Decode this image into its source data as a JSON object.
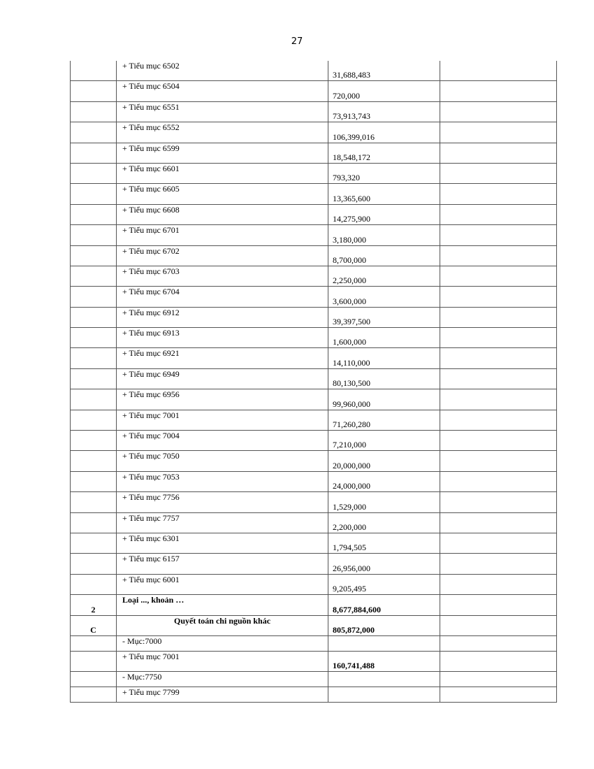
{
  "page_number": "27",
  "rows": [
    {
      "stt": "",
      "label": "+ Tiểu mục 6502",
      "value": "31,688,483"
    },
    {
      "stt": "",
      "label": "+ Tiểu mục 6504",
      "value": "720,000"
    },
    {
      "stt": "",
      "label": "+ Tiểu mục 6551",
      "value": "73,913,743"
    },
    {
      "stt": "",
      "label": "+ Tiểu mục 6552",
      "value": "106,399,016"
    },
    {
      "stt": "",
      "label": "+ Tiểu mục 6599",
      "value": "18,548,172"
    },
    {
      "stt": "",
      "label": "+ Tiểu mục 6601",
      "value": "793,320"
    },
    {
      "stt": "",
      "label": "+ Tiểu mục 6605",
      "value": "13,365,600"
    },
    {
      "stt": "",
      "label": "+ Tiểu mục 6608",
      "value": "14,275,900"
    },
    {
      "stt": "",
      "label": "+ Tiểu mục 6701",
      "value": "3,180,000"
    },
    {
      "stt": "",
      "label": "+ Tiểu mục 6702",
      "value": "8,700,000"
    },
    {
      "stt": "",
      "label": "+ Tiểu mục 6703",
      "value": "2,250,000"
    },
    {
      "stt": "",
      "label": "+ Tiểu mục 6704",
      "value": "3,600,000"
    },
    {
      "stt": "",
      "label": "+ Tiểu mục 6912",
      "value": "39,397,500"
    },
    {
      "stt": "",
      "label": "+ Tiểu mục 6913",
      "value": "1,600,000"
    },
    {
      "stt": "",
      "label": "+ Tiểu mục 6921",
      "value": "14,110,000"
    },
    {
      "stt": "",
      "label": "+ Tiểu mục 6949",
      "value": "80,130,500"
    },
    {
      "stt": "",
      "label": "+ Tiểu mục 6956",
      "value": "99,960,000"
    },
    {
      "stt": "",
      "label": "+ Tiểu mục 7001",
      "value": "71,260,280"
    },
    {
      "stt": "",
      "label": "+ Tiểu mục 7004",
      "value": "7,210,000"
    },
    {
      "stt": "",
      "label": "+ Tiểu mục 7050",
      "value": "20,000,000"
    },
    {
      "stt": "",
      "label": "+ Tiểu mục 7053",
      "value": "24,000,000"
    },
    {
      "stt": "",
      "label": "+ Tiểu mục 7756",
      "value": "1,529,000"
    },
    {
      "stt": "",
      "label": "+ Tiểu mục 7757",
      "value": "2,200,000"
    },
    {
      "stt": "",
      "label": "+ Tiểu mục 6301",
      "value": "1,794,505"
    },
    {
      "stt": "",
      "label": "+ Tiểu mục 6157",
      "value": "26,956,000"
    },
    {
      "stt": "",
      "label": "+ Tiểu mục 6001",
      "value": "9,205,495"
    },
    {
      "stt": "2",
      "label": "Loại ..., khoản …",
      "value": "8,677,884,600",
      "bold": true
    },
    {
      "stt": "C",
      "label": "Quyết toán chi nguồn khác",
      "value": "805,872,000",
      "bold": true,
      "centered": true
    },
    {
      "stt": "",
      "label": "- Mục:7000",
      "value": ""
    },
    {
      "stt": "",
      "label": "+ Tiểu mục 7001",
      "value": "160,741,488",
      "value_bold": true
    },
    {
      "stt": "",
      "label": "- Mục:7750",
      "value": ""
    },
    {
      "stt": "",
      "label": "+ Tiểu mục 7799",
      "value": ""
    }
  ]
}
